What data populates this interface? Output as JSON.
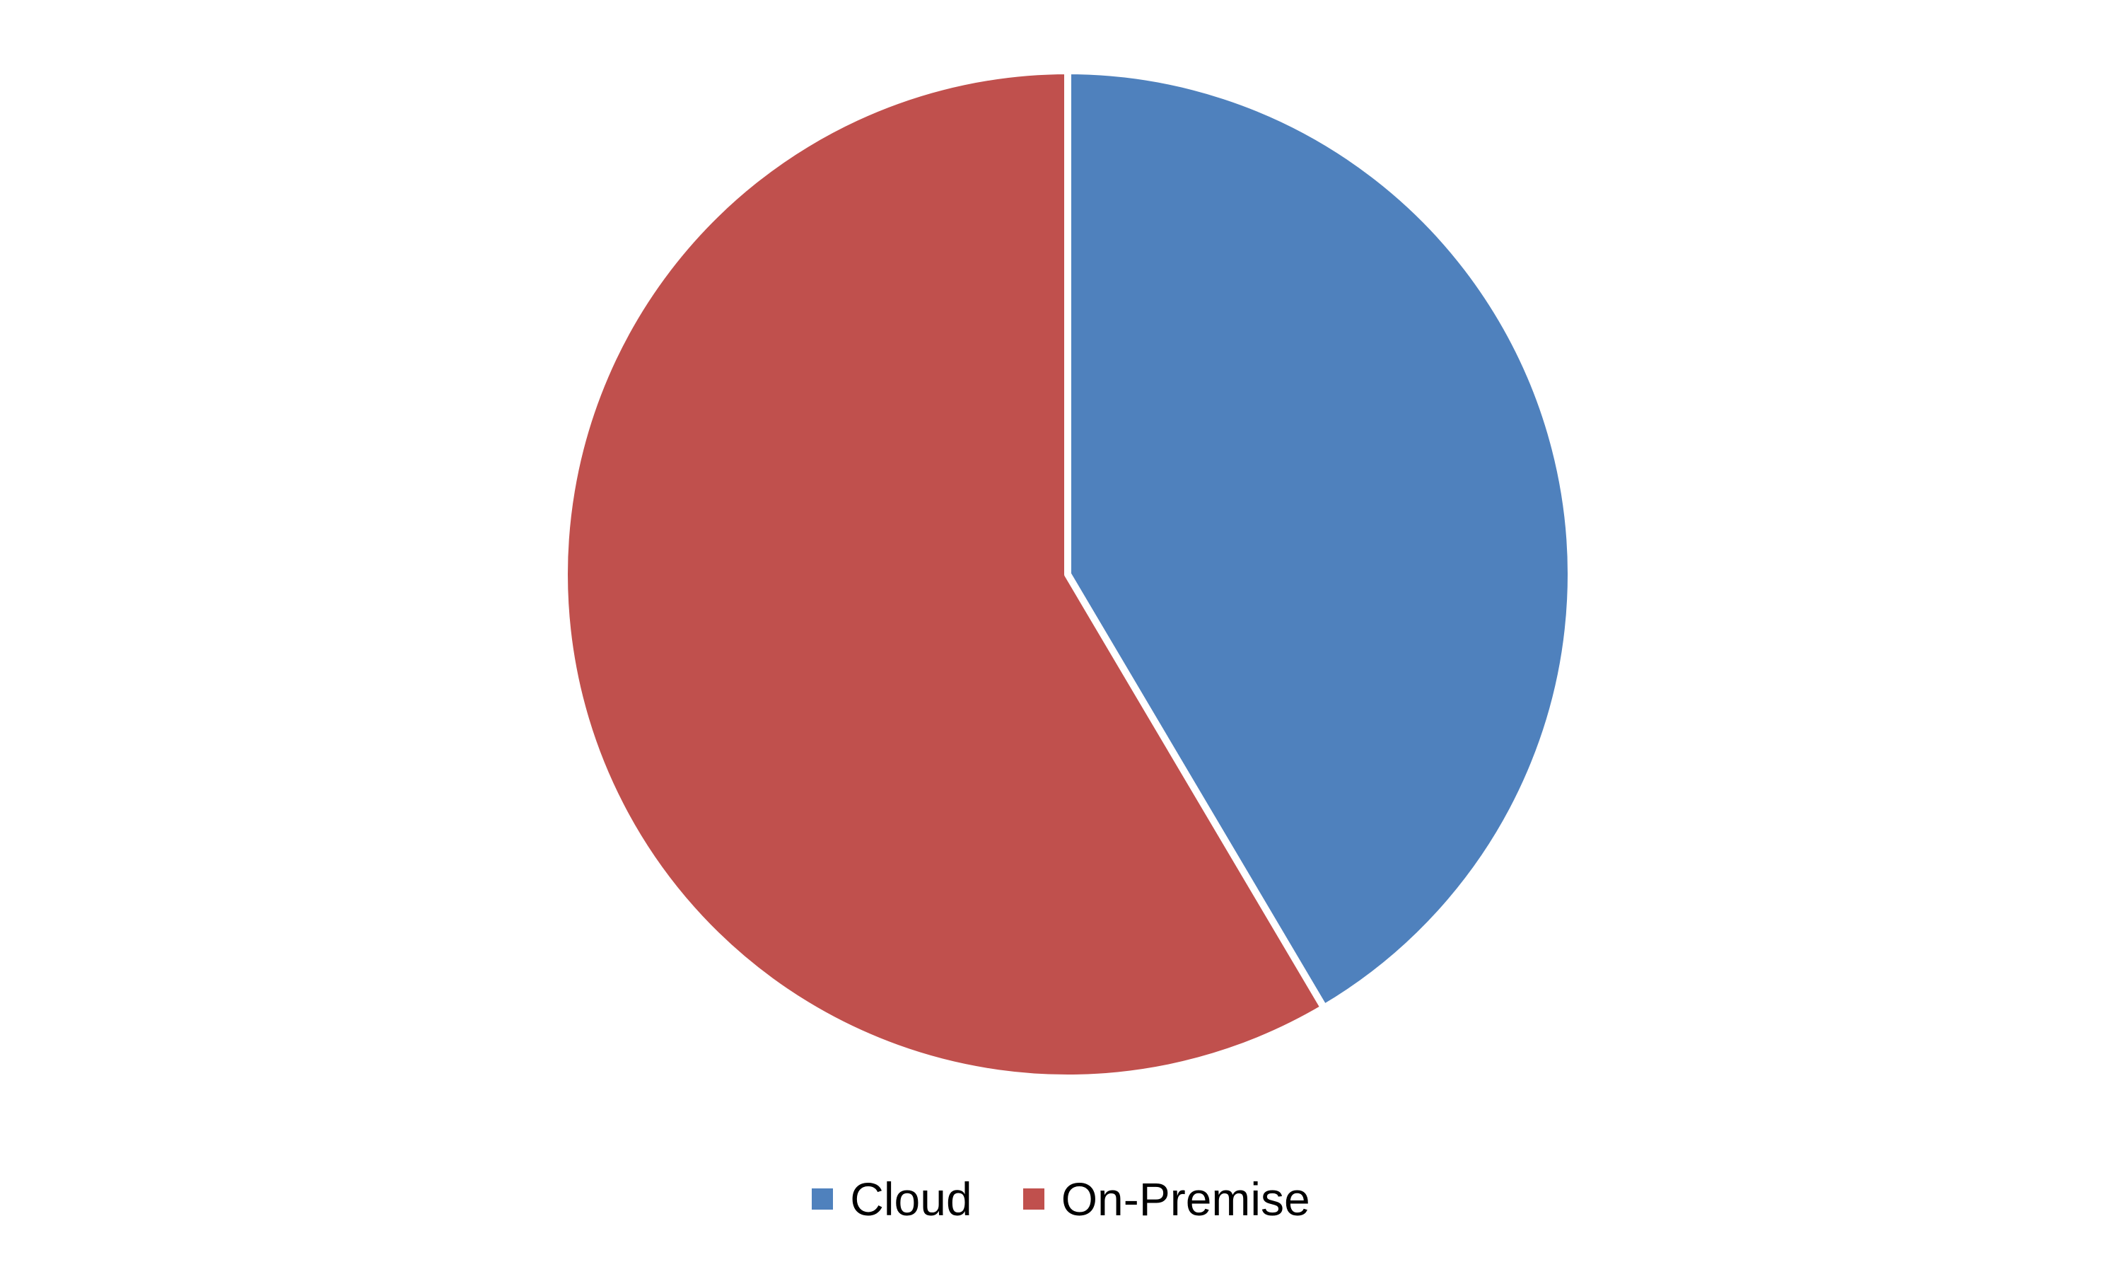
{
  "chart_data": {
    "type": "pie",
    "title": "",
    "slices": [
      {
        "label": "Cloud",
        "value": 41.5,
        "color": "#4F81BD"
      },
      {
        "label": "On-Premise",
        "value": 58.5,
        "color": "#C0504D"
      }
    ],
    "start_angle_deg": 0,
    "direction": "clockwise",
    "slice_border_color": "#FFFFFF",
    "legend": {
      "position": "bottom",
      "items": [
        {
          "label": "Cloud",
          "color": "#4F81BD"
        },
        {
          "label": "On-Premise",
          "color": "#C0504D"
        }
      ]
    }
  }
}
